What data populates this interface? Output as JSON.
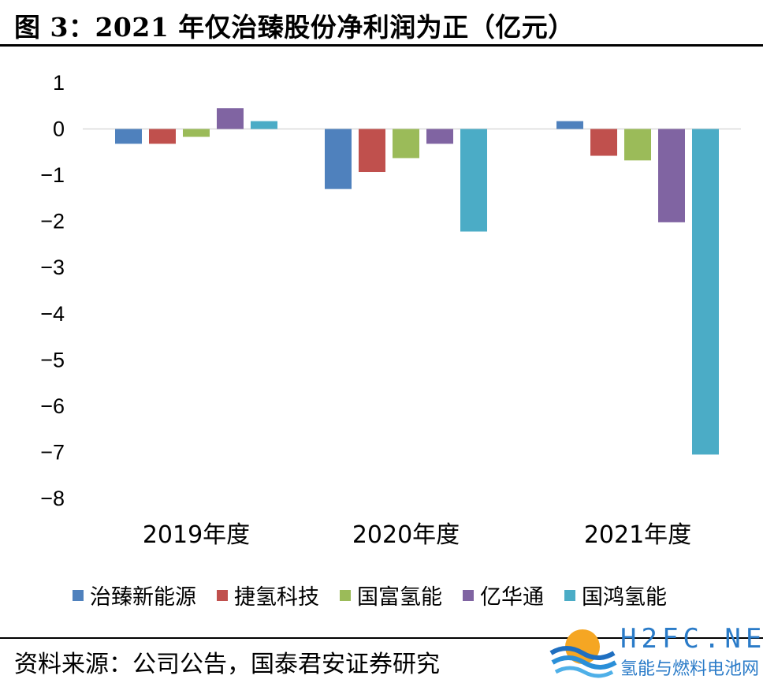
{
  "title": "图 3：2021 年仅治臻股份净利润为正（亿元）",
  "source": "资料来源：公司公告，国泰君安证券研究",
  "watermark": {
    "brand": "H2FC.NET",
    "subtitle": "氢能与燃料电池网"
  },
  "chart_data": {
    "type": "bar",
    "title": "2021 年仅治臻股份净利润为正（亿元）",
    "categories": [
      "2019年度",
      "2020年度",
      "2021年度"
    ],
    "series": [
      {
        "name": "治臻新能源",
        "color": "#4f81bd",
        "values": [
          -0.32,
          -1.3,
          0.17
        ]
      },
      {
        "name": "捷氢科技",
        "color": "#c0504d",
        "values": [
          -0.32,
          -0.93,
          -0.58
        ]
      },
      {
        "name": "国富氢能",
        "color": "#9bbb59",
        "values": [
          -0.17,
          -0.63,
          -0.68
        ]
      },
      {
        "name": "亿华通",
        "color": "#8064a2",
        "values": [
          0.45,
          -0.32,
          -2.02
        ]
      },
      {
        "name": "国鸿氢能",
        "color": "#4bacc6",
        "values": [
          0.17,
          -2.22,
          -7.05
        ]
      }
    ],
    "ylim": [
      -8,
      1
    ],
    "yticks": [
      "1",
      "0",
      "−1",
      "−2",
      "−3",
      "−4",
      "−5",
      "−6",
      "−7",
      "−8"
    ],
    "xlabel": "",
    "ylabel": "",
    "grid": false,
    "legend_position": "bottom"
  }
}
